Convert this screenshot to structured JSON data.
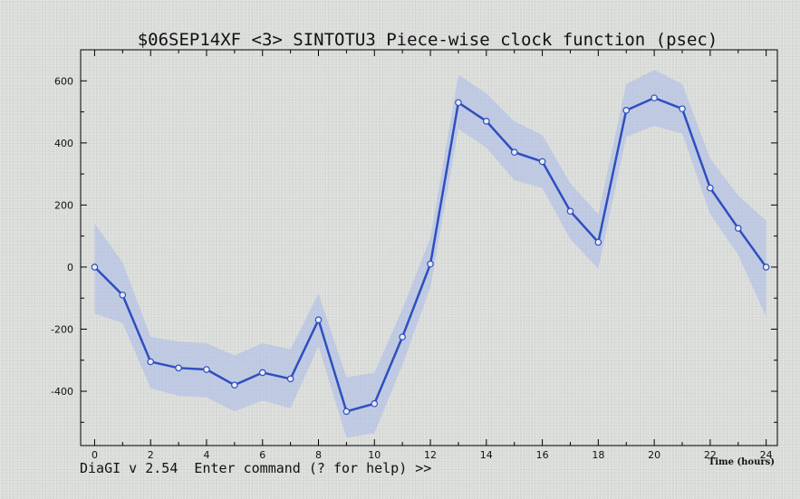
{
  "status_line": "DiaGI v 2.54  Enter command (? for help) >>",
  "colors": {
    "line": "#2e4fc0",
    "band": "#a9b9e8",
    "point_fill": "#e8ecf8",
    "axis": "#000000"
  },
  "chart_data": {
    "type": "line",
    "title": "$06SEP14XF <3>  SINTOTU3  Piece-wise clock function (psec)",
    "xlabel": "Time (hours)",
    "ylabel": "",
    "xlim": [
      -0.5,
      24.4
    ],
    "ylim": [
      -575,
      700
    ],
    "xticks": [
      0,
      2,
      4,
      6,
      8,
      10,
      12,
      14,
      16,
      18,
      20,
      22,
      24
    ],
    "yticks": [
      -400,
      -200,
      0,
      200,
      400,
      600
    ],
    "grid": false,
    "series": [
      {
        "x": [
          0,
          1,
          2,
          3,
          4,
          5,
          6,
          7,
          8,
          9,
          10,
          11,
          12,
          13,
          14,
          15,
          16,
          17,
          18,
          19,
          20,
          21,
          22,
          23,
          24
        ],
        "y": [
          0,
          -90,
          -305,
          -325,
          -330,
          -380,
          -340,
          -360,
          -170,
          -465,
          -440,
          -225,
          10,
          530,
          470,
          370,
          340,
          180,
          80,
          505,
          545,
          510,
          255,
          125,
          0
        ],
        "upper": [
          140,
          15,
          -225,
          -240,
          -245,
          -285,
          -245,
          -265,
          -85,
          -355,
          -340,
          -135,
          95,
          620,
          560,
          470,
          425,
          270,
          170,
          590,
          635,
          590,
          350,
          230,
          150
        ],
        "lower": [
          -150,
          -180,
          -390,
          -415,
          -420,
          -465,
          -430,
          -455,
          -255,
          -550,
          -535,
          -315,
          -65,
          445,
          385,
          280,
          255,
          90,
          -5,
          420,
          455,
          430,
          170,
          40,
          -160
        ]
      }
    ]
  }
}
